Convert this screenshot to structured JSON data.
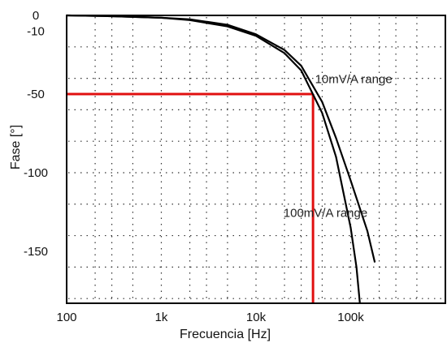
{
  "chart_data": {
    "type": "line",
    "title": "",
    "xlabel": "Frecuencia [Hz]",
    "ylabel": "Fase [°]",
    "x_scale": "log",
    "xlim": [
      100,
      1000000
    ],
    "ylim": [
      -183,
      0
    ],
    "x_ticks": [
      {
        "value": 100,
        "label": "100"
      },
      {
        "value": 1000,
        "label": "1k"
      },
      {
        "value": 10000,
        "label": "10k"
      },
      {
        "value": 100000,
        "label": "100k"
      }
    ],
    "y_ticks": [
      {
        "value": 0,
        "label": "0"
      },
      {
        "value": -10,
        "label": "-10"
      },
      {
        "value": -50,
        "label": "-50"
      },
      {
        "value": -100,
        "label": "-100"
      },
      {
        "value": -150,
        "label": "-150"
      }
    ],
    "grid": true,
    "series": [
      {
        "name": "100mV/A range",
        "color": "#000000",
        "x": [
          100,
          300,
          1000,
          2000,
          5000,
          10000,
          20000,
          30000,
          50000,
          70000,
          100000,
          115000,
          125000
        ],
        "y": [
          0,
          -0.5,
          -1.5,
          -3,
          -7,
          -13,
          -24,
          -35,
          -62,
          -90,
          -135,
          -160,
          -183
        ]
      },
      {
        "name": "10mV/A range",
        "color": "#000000",
        "x": [
          100,
          300,
          1000,
          2000,
          5000,
          10000,
          20000,
          30000,
          50000,
          70000,
          100000,
          150000,
          180000
        ],
        "y": [
          0,
          -0.5,
          -1.5,
          -2.5,
          -6,
          -12,
          -22,
          -32,
          -55,
          -78,
          -105,
          -137,
          -157
        ]
      }
    ],
    "reference_lines": {
      "color": "#e01010",
      "horizontal_y": -50,
      "vertical_x": 40000
    },
    "annotations": [
      {
        "text": "10mV/A range",
        "x": 42000,
        "y": -43
      },
      {
        "text": "100mV/A range",
        "x": 19500,
        "y": -128
      }
    ]
  }
}
